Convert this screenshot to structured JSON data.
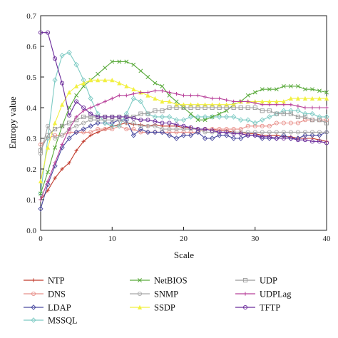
{
  "chart_data": {
    "type": "line",
    "title": "",
    "xlabel": "Scale",
    "ylabel": "Entropy value",
    "xlim": [
      0,
      40
    ],
    "ylim": [
      0,
      0.7
    ],
    "xticks": [
      0,
      10,
      20,
      30,
      40
    ],
    "yticks": [
      0,
      0.1,
      0.2,
      0.3,
      0.4,
      0.5,
      0.6,
      0.7
    ],
    "x": [
      0,
      1,
      2,
      3,
      4,
      5,
      6,
      7,
      8,
      9,
      10,
      11,
      12,
      13,
      14,
      15,
      16,
      17,
      18,
      19,
      20,
      21,
      22,
      23,
      24,
      25,
      26,
      27,
      28,
      29,
      30,
      31,
      32,
      33,
      34,
      35,
      36,
      37,
      38,
      39,
      40
    ],
    "grid": false,
    "legend_position": "bottom",
    "series": [
      {
        "name": "NTP",
        "color": "#c0392b",
        "marker": "plus",
        "values": [
          0.1,
          0.13,
          0.17,
          0.2,
          0.22,
          0.26,
          0.29,
          0.31,
          0.32,
          0.33,
          0.34,
          0.345,
          0.35,
          0.345,
          0.345,
          0.34,
          0.345,
          0.34,
          0.34,
          0.34,
          0.335,
          0.335,
          0.33,
          0.33,
          0.33,
          0.325,
          0.325,
          0.32,
          0.32,
          0.315,
          0.315,
          0.31,
          0.31,
          0.31,
          0.305,
          0.305,
          0.3,
          0.3,
          0.3,
          0.295,
          0.29
        ]
      },
      {
        "name": "DNS",
        "color": "#e8908a",
        "marker": "circle",
        "values": [
          0.28,
          0.3,
          0.31,
          0.31,
          0.32,
          0.32,
          0.32,
          0.32,
          0.33,
          0.33,
          0.33,
          0.34,
          0.33,
          0.33,
          0.32,
          0.32,
          0.32,
          0.32,
          0.32,
          0.32,
          0.32,
          0.32,
          0.32,
          0.33,
          0.33,
          0.33,
          0.33,
          0.33,
          0.33,
          0.34,
          0.34,
          0.34,
          0.34,
          0.35,
          0.35,
          0.35,
          0.35,
          0.36,
          0.36,
          0.36,
          0.36
        ]
      },
      {
        "name": "LDAP",
        "color": "#4a4aa0",
        "marker": "diamond",
        "values": [
          0.07,
          0.15,
          0.21,
          0.27,
          0.3,
          0.32,
          0.33,
          0.34,
          0.35,
          0.35,
          0.35,
          0.36,
          0.36,
          0.31,
          0.33,
          0.32,
          0.32,
          0.32,
          0.31,
          0.3,
          0.31,
          0.31,
          0.32,
          0.3,
          0.3,
          0.31,
          0.31,
          0.3,
          0.3,
          0.31,
          0.31,
          0.3,
          0.3,
          0.3,
          0.31,
          0.3,
          0.3,
          0.31,
          0.31,
          0.31,
          0.32
        ]
      },
      {
        "name": "MSSQL",
        "color": "#7ecbc4",
        "marker": "diamond",
        "values": [
          0.12,
          0.3,
          0.49,
          0.57,
          0.58,
          0.54,
          0.49,
          0.43,
          0.38,
          0.35,
          0.34,
          0.34,
          0.38,
          0.43,
          0.42,
          0.38,
          0.37,
          0.37,
          0.37,
          0.36,
          0.36,
          0.37,
          0.37,
          0.37,
          0.37,
          0.37,
          0.37,
          0.37,
          0.36,
          0.36,
          0.35,
          0.36,
          0.37,
          0.38,
          0.39,
          0.39,
          0.39,
          0.38,
          0.38,
          0.37,
          0.37
        ]
      },
      {
        "name": "NetBIOS",
        "color": "#5aaa3c",
        "marker": "x",
        "values": [
          0.12,
          0.19,
          0.27,
          0.34,
          0.4,
          0.44,
          0.47,
          0.49,
          0.51,
          0.53,
          0.55,
          0.55,
          0.55,
          0.54,
          0.52,
          0.5,
          0.48,
          0.47,
          0.44,
          0.42,
          0.4,
          0.38,
          0.36,
          0.36,
          0.37,
          0.38,
          0.39,
          0.41,
          0.42,
          0.44,
          0.45,
          0.46,
          0.46,
          0.46,
          0.47,
          0.47,
          0.47,
          0.46,
          0.46,
          0.455,
          0.45
        ]
      },
      {
        "name": "SNMP",
        "color": "#a8a8a8",
        "marker": "circle",
        "values": [
          0.25,
          0.34,
          0.3,
          0.31,
          0.33,
          0.34,
          0.35,
          0.36,
          0.36,
          0.36,
          0.36,
          0.36,
          0.35,
          0.35,
          0.34,
          0.34,
          0.34,
          0.33,
          0.33,
          0.33,
          0.33,
          0.33,
          0.33,
          0.32,
          0.32,
          0.32,
          0.32,
          0.32,
          0.32,
          0.32,
          0.32,
          0.32,
          0.32,
          0.32,
          0.32,
          0.32,
          0.32,
          0.32,
          0.32,
          0.32,
          0.32
        ]
      },
      {
        "name": "SSDP",
        "color": "#f2f040",
        "marker": "triangle",
        "values": [
          0.16,
          0.27,
          0.35,
          0.41,
          0.45,
          0.47,
          0.48,
          0.49,
          0.49,
          0.49,
          0.49,
          0.48,
          0.47,
          0.46,
          0.45,
          0.44,
          0.43,
          0.42,
          0.42,
          0.41,
          0.41,
          0.41,
          0.41,
          0.41,
          0.41,
          0.41,
          0.41,
          0.41,
          0.42,
          0.42,
          0.42,
          0.42,
          0.42,
          0.42,
          0.42,
          0.43,
          0.43,
          0.43,
          0.43,
          0.43,
          0.43
        ]
      },
      {
        "name": "UDP",
        "color": "#9a9a9a",
        "marker": "square",
        "values": [
          0.26,
          0.31,
          0.33,
          0.34,
          0.35,
          0.36,
          0.37,
          0.37,
          0.37,
          0.37,
          0.37,
          0.37,
          0.37,
          0.37,
          0.38,
          0.38,
          0.39,
          0.39,
          0.4,
          0.4,
          0.4,
          0.4,
          0.4,
          0.4,
          0.4,
          0.4,
          0.4,
          0.4,
          0.4,
          0.4,
          0.4,
          0.39,
          0.39,
          0.38,
          0.38,
          0.38,
          0.37,
          0.37,
          0.36,
          0.36,
          0.35
        ]
      },
      {
        "name": "UDPLag",
        "color": "#b8409a",
        "marker": "plus",
        "values": [
          0.1,
          0.16,
          0.22,
          0.28,
          0.33,
          0.37,
          0.39,
          0.4,
          0.41,
          0.42,
          0.43,
          0.44,
          0.44,
          0.445,
          0.45,
          0.45,
          0.455,
          0.455,
          0.45,
          0.445,
          0.44,
          0.44,
          0.44,
          0.435,
          0.43,
          0.43,
          0.425,
          0.42,
          0.42,
          0.42,
          0.415,
          0.41,
          0.41,
          0.41,
          0.41,
          0.41,
          0.405,
          0.4,
          0.4,
          0.4,
          0.4
        ]
      },
      {
        "name": "TFTP",
        "color": "#6a2a9a",
        "marker": "circle",
        "values": [
          0.645,
          0.645,
          0.56,
          0.48,
          0.375,
          0.42,
          0.4,
          0.38,
          0.37,
          0.37,
          0.37,
          0.37,
          0.37,
          0.365,
          0.36,
          0.36,
          0.355,
          0.35,
          0.35,
          0.345,
          0.34,
          0.335,
          0.33,
          0.33,
          0.325,
          0.32,
          0.32,
          0.315,
          0.315,
          0.31,
          0.31,
          0.305,
          0.305,
          0.3,
          0.3,
          0.3,
          0.295,
          0.295,
          0.29,
          0.29,
          0.285
        ]
      }
    ]
  }
}
